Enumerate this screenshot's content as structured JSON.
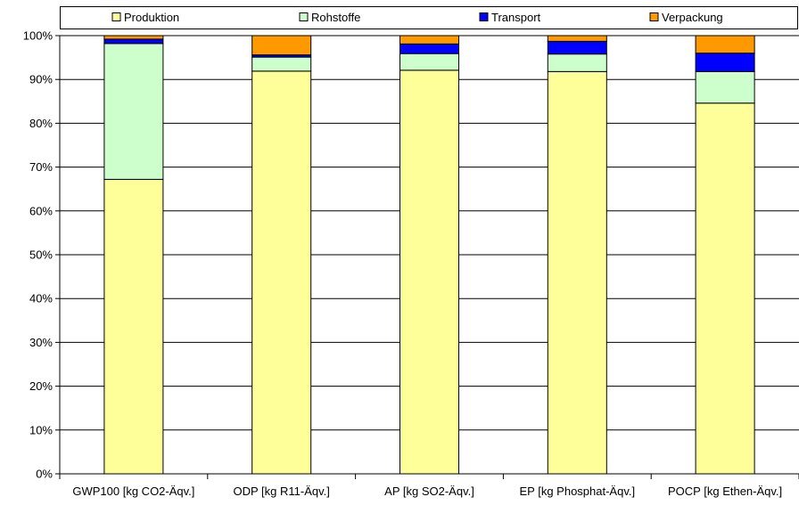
{
  "chart_data": {
    "type": "bar",
    "stacked": true,
    "categories": [
      "GWP100 [kg CO2-Äqv.]",
      "ODP [kg R11-Äqv.]",
      "AP [kg SO2-Äqv.]",
      "EP [kg Phosphat-Äqv.]",
      "POCP [kg Ethen-Äqv.]"
    ],
    "series": [
      {
        "name": "Produktion",
        "color": "#FFFF99",
        "values": [
          67.2,
          91.9,
          92.1,
          91.8,
          84.6
        ]
      },
      {
        "name": "Rohstoffe",
        "color": "#CCFFCC",
        "values": [
          31.0,
          3.2,
          3.8,
          4.0,
          7.2
        ]
      },
      {
        "name": "Transport",
        "color": "#0000FF",
        "values": [
          1.0,
          0.5,
          2.2,
          2.9,
          4.2
        ]
      },
      {
        "name": "Verpackung",
        "color": "#FF9900",
        "values": [
          0.8,
          4.4,
          1.9,
          1.3,
          4.0
        ]
      }
    ],
    "yticks": [
      "0%",
      "10%",
      "20%",
      "30%",
      "40%",
      "50%",
      "60%",
      "70%",
      "80%",
      "90%",
      "100%"
    ],
    "ylim": [
      0,
      100
    ],
    "grid": true,
    "legend_position": "top"
  }
}
